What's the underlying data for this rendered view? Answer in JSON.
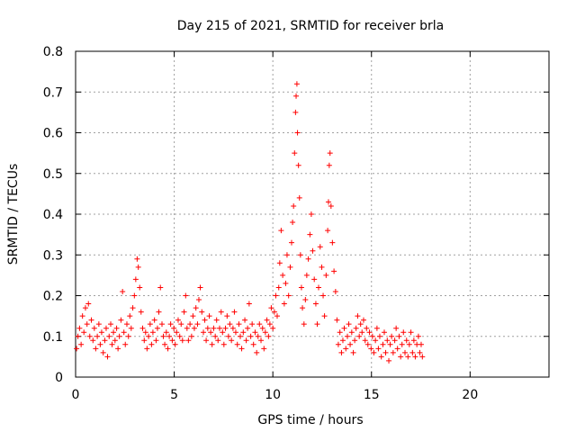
{
  "chart_data": {
    "type": "scatter",
    "title": "Day 215 of 2021, SRMTID for receiver brla",
    "xlabel": "GPS time / hours",
    "ylabel": "SRMTID / TECUs",
    "xlim": [
      0,
      24
    ],
    "ylim": [
      0,
      0.8
    ],
    "xticks": [
      0,
      5,
      10,
      15,
      20
    ],
    "xtick_labels": [
      "0",
      "5",
      "10",
      "15",
      "20"
    ],
    "yticks": [
      0,
      0.1,
      0.2,
      0.3,
      0.4,
      0.5,
      0.6,
      0.7,
      0.8
    ],
    "ytick_labels": [
      "0",
      "0.1",
      "0.2",
      "0.3",
      "0.4",
      "0.5",
      "0.6",
      "0.7",
      "0.8"
    ],
    "grid": true,
    "marker": "+",
    "color": "#ff0000",
    "series": [
      {
        "name": "SRMTID",
        "points": [
          [
            0.05,
            0.07
          ],
          [
            0.12,
            0.1
          ],
          [
            0.2,
            0.12
          ],
          [
            0.28,
            0.08
          ],
          [
            0.35,
            0.15
          ],
          [
            0.42,
            0.11
          ],
          [
            0.5,
            0.17
          ],
          [
            0.58,
            0.13
          ],
          [
            0.65,
            0.18
          ],
          [
            0.72,
            0.1
          ],
          [
            0.8,
            0.14
          ],
          [
            0.88,
            0.09
          ],
          [
            0.95,
            0.12
          ],
          [
            1.02,
            0.07
          ],
          [
            1.1,
            0.1
          ],
          [
            1.18,
            0.13
          ],
          [
            1.25,
            0.08
          ],
          [
            1.32,
            0.11
          ],
          [
            1.4,
            0.06
          ],
          [
            1.48,
            0.09
          ],
          [
            1.55,
            0.12
          ],
          [
            1.62,
            0.05
          ],
          [
            1.7,
            0.1
          ],
          [
            1.78,
            0.13
          ],
          [
            1.85,
            0.08
          ],
          [
            1.92,
            0.11
          ],
          [
            2.0,
            0.09
          ],
          [
            2.08,
            0.12
          ],
          [
            2.15,
            0.07
          ],
          [
            2.22,
            0.1
          ],
          [
            2.3,
            0.14
          ],
          [
            2.38,
            0.21
          ],
          [
            2.45,
            0.11
          ],
          [
            2.52,
            0.08
          ],
          [
            2.6,
            0.13
          ],
          [
            2.68,
            0.1
          ],
          [
            2.75,
            0.15
          ],
          [
            2.82,
            0.12
          ],
          [
            2.9,
            0.17
          ],
          [
            2.98,
            0.2
          ],
          [
            3.05,
            0.24
          ],
          [
            3.12,
            0.29
          ],
          [
            3.18,
            0.27
          ],
          [
            3.25,
            0.22
          ],
          [
            3.32,
            0.16
          ],
          [
            3.4,
            0.12
          ],
          [
            3.48,
            0.09
          ],
          [
            3.55,
            0.11
          ],
          [
            3.62,
            0.07
          ],
          [
            3.7,
            0.1
          ],
          [
            3.78,
            0.13
          ],
          [
            3.85,
            0.08
          ],
          [
            3.92,
            0.11
          ],
          [
            4.0,
            0.14
          ],
          [
            4.08,
            0.09
          ],
          [
            4.15,
            0.12
          ],
          [
            4.22,
            0.16
          ],
          [
            4.3,
            0.22
          ],
          [
            4.38,
            0.13
          ],
          [
            4.45,
            0.1
          ],
          [
            4.52,
            0.08
          ],
          [
            4.6,
            0.11
          ],
          [
            4.68,
            0.07
          ],
          [
            4.75,
            0.1
          ],
          [
            4.82,
            0.13
          ],
          [
            4.9,
            0.09
          ],
          [
            4.98,
            0.12
          ],
          [
            5.05,
            0.08
          ],
          [
            5.12,
            0.11
          ],
          [
            5.2,
            0.14
          ],
          [
            5.28,
            0.1
          ],
          [
            5.35,
            0.13
          ],
          [
            5.42,
            0.09
          ],
          [
            5.5,
            0.16
          ],
          [
            5.58,
            0.2
          ],
          [
            5.65,
            0.12
          ],
          [
            5.72,
            0.09
          ],
          [
            5.8,
            0.13
          ],
          [
            5.88,
            0.1
          ],
          [
            5.95,
            0.15
          ],
          [
            6.02,
            0.12
          ],
          [
            6.1,
            0.17
          ],
          [
            6.18,
            0.13
          ],
          [
            6.25,
            0.19
          ],
          [
            6.32,
            0.22
          ],
          [
            6.4,
            0.16
          ],
          [
            6.48,
            0.11
          ],
          [
            6.55,
            0.14
          ],
          [
            6.62,
            0.09
          ],
          [
            6.7,
            0.12
          ],
          [
            6.78,
            0.15
          ],
          [
            6.85,
            0.11
          ],
          [
            6.92,
            0.08
          ],
          [
            7.0,
            0.12
          ],
          [
            7.08,
            0.1
          ],
          [
            7.15,
            0.14
          ],
          [
            7.22,
            0.09
          ],
          [
            7.3,
            0.12
          ],
          [
            7.38,
            0.16
          ],
          [
            7.45,
            0.11
          ],
          [
            7.52,
            0.08
          ],
          [
            7.6,
            0.12
          ],
          [
            7.68,
            0.15
          ],
          [
            7.75,
            0.1
          ],
          [
            7.82,
            0.13
          ],
          [
            7.9,
            0.09
          ],
          [
            7.98,
            0.12
          ],
          [
            8.05,
            0.16
          ],
          [
            8.12,
            0.11
          ],
          [
            8.2,
            0.08
          ],
          [
            8.28,
            0.13
          ],
          [
            8.35,
            0.1
          ],
          [
            8.42,
            0.07
          ],
          [
            8.5,
            0.11
          ],
          [
            8.58,
            0.14
          ],
          [
            8.65,
            0.09
          ],
          [
            8.72,
            0.12
          ],
          [
            8.8,
            0.18
          ],
          [
            8.88,
            0.1
          ],
          [
            8.95,
            0.13
          ],
          [
            9.02,
            0.08
          ],
          [
            9.1,
            0.11
          ],
          [
            9.18,
            0.06
          ],
          [
            9.25,
            0.1
          ],
          [
            9.32,
            0.13
          ],
          [
            9.4,
            0.09
          ],
          [
            9.48,
            0.12
          ],
          [
            9.55,
            0.07
          ],
          [
            9.62,
            0.11
          ],
          [
            9.7,
            0.14
          ],
          [
            9.78,
            0.1
          ],
          [
            9.85,
            0.13
          ],
          [
            9.92,
            0.17
          ],
          [
            10.0,
            0.12
          ],
          [
            10.08,
            0.16
          ],
          [
            10.15,
            0.2
          ],
          [
            10.22,
            0.15
          ],
          [
            10.3,
            0.22
          ],
          [
            10.35,
            0.28
          ],
          [
            10.42,
            0.36
          ],
          [
            10.5,
            0.25
          ],
          [
            10.58,
            0.18
          ],
          [
            10.65,
            0.23
          ],
          [
            10.72,
            0.3
          ],
          [
            10.8,
            0.2
          ],
          [
            10.88,
            0.27
          ],
          [
            10.95,
            0.33
          ],
          [
            11.0,
            0.38
          ],
          [
            11.05,
            0.42
          ],
          [
            11.1,
            0.55
          ],
          [
            11.15,
            0.65
          ],
          [
            11.18,
            0.69
          ],
          [
            11.22,
            0.72
          ],
          [
            11.25,
            0.6
          ],
          [
            11.3,
            0.52
          ],
          [
            11.35,
            0.44
          ],
          [
            11.4,
            0.3
          ],
          [
            11.45,
            0.22
          ],
          [
            11.5,
            0.17
          ],
          [
            11.58,
            0.13
          ],
          [
            11.65,
            0.19
          ],
          [
            11.72,
            0.25
          ],
          [
            11.8,
            0.29
          ],
          [
            11.88,
            0.35
          ],
          [
            11.95,
            0.4
          ],
          [
            12.02,
            0.31
          ],
          [
            12.1,
            0.24
          ],
          [
            12.18,
            0.18
          ],
          [
            12.25,
            0.13
          ],
          [
            12.32,
            0.22
          ],
          [
            12.4,
            0.32
          ],
          [
            12.48,
            0.27
          ],
          [
            12.55,
            0.2
          ],
          [
            12.62,
            0.15
          ],
          [
            12.7,
            0.25
          ],
          [
            12.78,
            0.36
          ],
          [
            12.82,
            0.43
          ],
          [
            12.86,
            0.52
          ],
          [
            12.9,
            0.55
          ],
          [
            12.95,
            0.42
          ],
          [
            13.02,
            0.33
          ],
          [
            13.1,
            0.26
          ],
          [
            13.18,
            0.21
          ],
          [
            13.25,
            0.14
          ],
          [
            13.32,
            0.08
          ],
          [
            13.4,
            0.11
          ],
          [
            13.48,
            0.06
          ],
          [
            13.55,
            0.09
          ],
          [
            13.62,
            0.12
          ],
          [
            13.7,
            0.07
          ],
          [
            13.78,
            0.1
          ],
          [
            13.85,
            0.13
          ],
          [
            13.92,
            0.08
          ],
          [
            14.0,
            0.11
          ],
          [
            14.08,
            0.06
          ],
          [
            14.15,
            0.09
          ],
          [
            14.22,
            0.12
          ],
          [
            14.3,
            0.15
          ],
          [
            14.38,
            0.1
          ],
          [
            14.45,
            0.13
          ],
          [
            14.52,
            0.11
          ],
          [
            14.6,
            0.14
          ],
          [
            14.68,
            0.09
          ],
          [
            14.75,
            0.12
          ],
          [
            14.82,
            0.08
          ],
          [
            14.9,
            0.11
          ],
          [
            14.98,
            0.07
          ],
          [
            15.05,
            0.1
          ],
          [
            15.12,
            0.06
          ],
          [
            15.2,
            0.09
          ],
          [
            15.28,
            0.12
          ],
          [
            15.35,
            0.07
          ],
          [
            15.42,
            0.1
          ],
          [
            15.5,
            0.05
          ],
          [
            15.58,
            0.08
          ],
          [
            15.65,
            0.11
          ],
          [
            15.72,
            0.06
          ],
          [
            15.8,
            0.09
          ],
          [
            15.88,
            0.04
          ],
          [
            15.95,
            0.08
          ],
          [
            16.02,
            0.1
          ],
          [
            16.1,
            0.06
          ],
          [
            16.18,
            0.09
          ],
          [
            16.25,
            0.12
          ],
          [
            16.32,
            0.07
          ],
          [
            16.4,
            0.1
          ],
          [
            16.48,
            0.05
          ],
          [
            16.55,
            0.08
          ],
          [
            16.62,
            0.11
          ],
          [
            16.7,
            0.06
          ],
          [
            16.78,
            0.09
          ],
          [
            16.85,
            0.05
          ],
          [
            16.92,
            0.08
          ],
          [
            17.0,
            0.11
          ],
          [
            17.08,
            0.06
          ],
          [
            17.15,
            0.09
          ],
          [
            17.22,
            0.05
          ],
          [
            17.3,
            0.08
          ],
          [
            17.38,
            0.1
          ],
          [
            17.45,
            0.06
          ],
          [
            17.52,
            0.08
          ],
          [
            17.58,
            0.05
          ]
        ]
      }
    ]
  }
}
